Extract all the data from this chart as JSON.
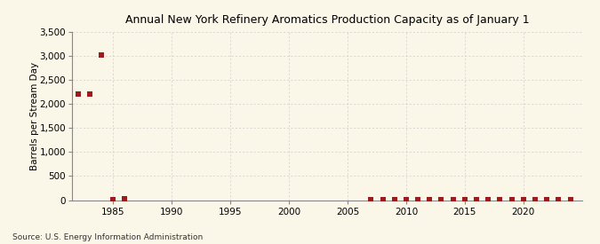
{
  "title": "Annual New York Refinery Aromatics Production Capacity as of January 1",
  "ylabel": "Barrels per Stream Day",
  "source": "Source: U.S. Energy Information Administration",
  "background_color": "#faf6e8",
  "marker_color": "#9b1c1c",
  "grid_color": "#cccccc",
  "ylim": [
    0,
    3500
  ],
  "yticks": [
    0,
    500,
    1000,
    1500,
    2000,
    2500,
    3000,
    3500
  ],
  "xlim": [
    1981.5,
    2025
  ],
  "xticks": [
    1985,
    1990,
    1995,
    2000,
    2005,
    2010,
    2015,
    2020
  ],
  "data_x": [
    1982,
    1983,
    1984,
    1985,
    1986,
    2007,
    2008,
    2009,
    2010,
    2011,
    2012,
    2013,
    2014,
    2015,
    2016,
    2017,
    2018,
    2019,
    2020,
    2021,
    2022,
    2023,
    2024
  ],
  "data_y": [
    2200,
    2200,
    3012,
    14,
    28,
    14,
    14,
    14,
    14,
    14,
    14,
    14,
    14,
    14,
    14,
    14,
    14,
    14,
    14,
    14,
    14,
    14,
    14
  ]
}
